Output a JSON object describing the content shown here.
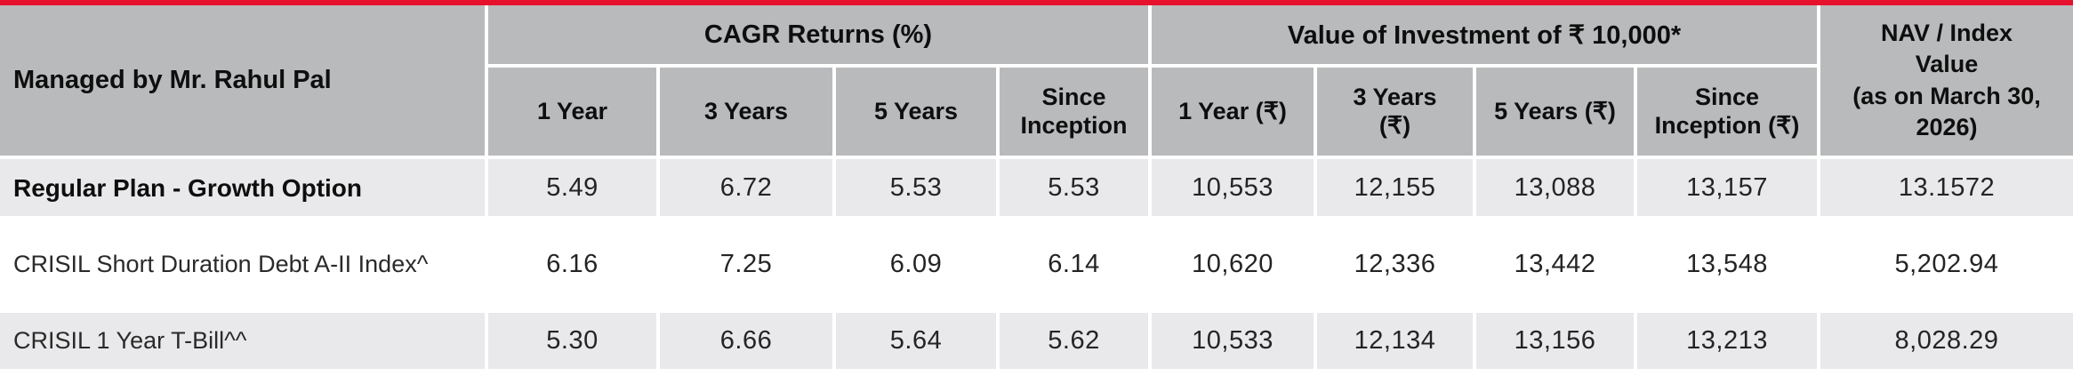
{
  "page": {
    "top_bar_color": "#e8112d",
    "header_bg": "#b9babc",
    "row_alt_bg": "#e9e9eb"
  },
  "table": {
    "manager": "Managed by Mr. Rahul Pal",
    "group_headers": {
      "cagr": "CAGR Returns (%)",
      "investment": "Value of Investment of ₹ 10,000*",
      "nav": "NAV / Index\nValue\n(as on March 30,\n2026)"
    },
    "sub_headers": {
      "cagr_1y": "1 Year",
      "cagr_3y": "3 Years",
      "cagr_5y": "5 Years",
      "cagr_si": "Since\nInception",
      "inv_1y": "1 Year (₹)",
      "inv_3y": "3 Years\n(₹)",
      "inv_5y": "5 Years (₹)",
      "inv_si": "Since\nInception (₹)"
    },
    "rows": [
      {
        "name": "Regular Plan - Growth Option",
        "cagr_1y": "5.49",
        "cagr_3y": "6.72",
        "cagr_5y": "5.53",
        "cagr_si": "5.53",
        "inv_1y": "10,553",
        "inv_3y": "12,155",
        "inv_5y": "13,088",
        "inv_si": "13,157",
        "nav": "13.1572"
      },
      {
        "name": "CRISIL Short Duration Debt A-II Index^",
        "cagr_1y": "6.16",
        "cagr_3y": "7.25",
        "cagr_5y": "6.09",
        "cagr_si": "6.14",
        "inv_1y": "10,620",
        "inv_3y": "12,336",
        "inv_5y": "13,442",
        "inv_si": "13,548",
        "nav": "5,202.94"
      },
      {
        "name": "CRISIL 1 Year T-Bill^^",
        "cagr_1y": "5.30",
        "cagr_3y": "6.66",
        "cagr_5y": "5.64",
        "cagr_si": "5.62",
        "inv_1y": "10,533",
        "inv_3y": "12,134",
        "inv_5y": "13,156",
        "inv_si": "13,213",
        "nav": "8,028.29"
      }
    ]
  }
}
